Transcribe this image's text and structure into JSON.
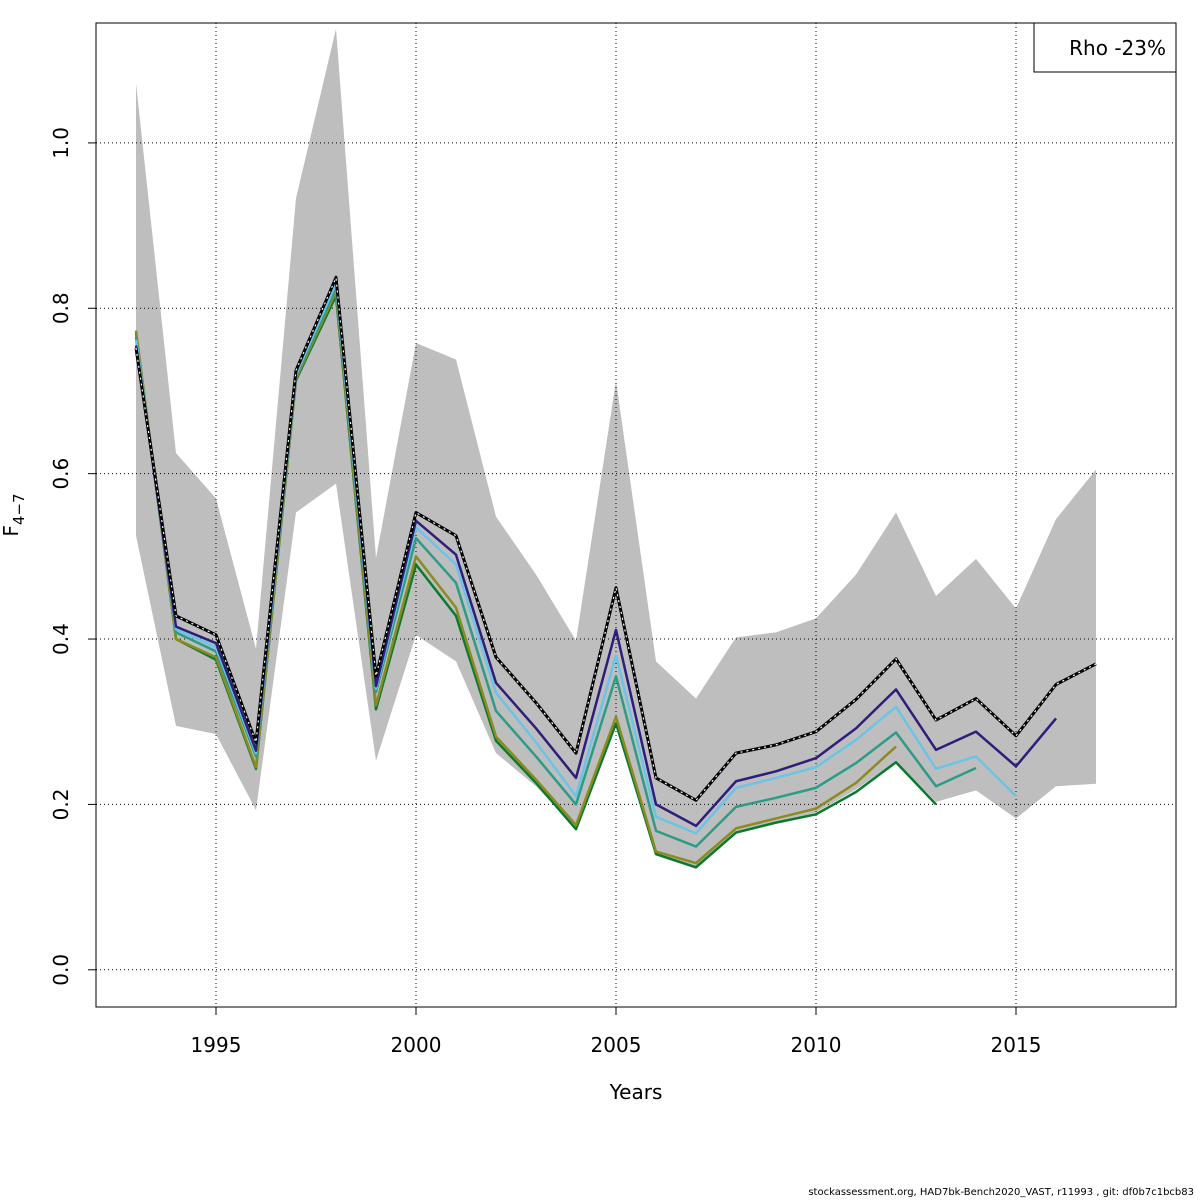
{
  "chart_data": {
    "type": "line",
    "xlabel": "Years",
    "ylabel": "F",
    "ylabel_subscript": "4−7",
    "xlim": [
      1992,
      2019
    ],
    "ylim": [
      -0.045,
      1.145
    ],
    "x_ticks": [
      1995,
      2000,
      2005,
      2010,
      2015
    ],
    "y_ticks": [
      0.0,
      0.2,
      0.4,
      0.6,
      0.8,
      1.0
    ],
    "y_tick_labels": [
      "0.0",
      "0.2",
      "0.4",
      "0.6",
      "0.8",
      "1.0"
    ],
    "grid": true,
    "legend": {
      "text": "Rho -23%",
      "placement": "top-right"
    },
    "band": {
      "color": "#bebebe",
      "x": [
        1993,
        1994,
        1995,
        1996,
        1997,
        1998,
        1999,
        2000,
        2001,
        2002,
        2003,
        2004,
        2005,
        2006,
        2007,
        2008,
        2009,
        2010,
        2011,
        2012,
        2013,
        2014,
        2015,
        2016,
        2017
      ],
      "lower": [
        0.525,
        0.295,
        0.285,
        0.193,
        0.553,
        0.588,
        0.253,
        0.405,
        0.373,
        0.262,
        0.222,
        0.172,
        0.302,
        0.138,
        0.122,
        0.165,
        0.178,
        0.19,
        0.218,
        0.252,
        0.203,
        0.217,
        0.183,
        0.222,
        0.225
      ],
      "upper": [
        1.072,
        0.625,
        0.57,
        0.388,
        0.933,
        1.138,
        0.498,
        0.758,
        0.738,
        0.548,
        0.478,
        0.398,
        0.712,
        0.373,
        0.328,
        0.402,
        0.408,
        0.425,
        0.478,
        0.553,
        0.452,
        0.497,
        0.437,
        0.545,
        0.605
      ]
    },
    "series": [
      {
        "color": "#000000",
        "dashed": true,
        "x": [
          1993,
          1994,
          1995,
          1996,
          1997,
          1998,
          1999,
          2000,
          2001,
          2002,
          2003,
          2004,
          2005,
          2006,
          2007,
          2008,
          2009,
          2010,
          2011,
          2012,
          2013,
          2014,
          2015,
          2016,
          2017
        ],
        "values": [
          0.752,
          0.428,
          0.405,
          0.275,
          0.725,
          0.837,
          0.355,
          0.553,
          0.525,
          0.378,
          0.323,
          0.262,
          0.462,
          0.232,
          0.205,
          0.262,
          0.272,
          0.288,
          0.327,
          0.376,
          0.302,
          0.328,
          0.283,
          0.345,
          0.37
        ]
      },
      {
        "color": "#2d1e7c",
        "x": [
          1993,
          1994,
          1995,
          1996,
          1997,
          1998,
          1999,
          2000,
          2001,
          2002,
          2003,
          2004,
          2005,
          2006,
          2007,
          2008,
          2009,
          2010,
          2011,
          2012,
          2013,
          2014,
          2015,
          2016
        ],
        "values": [
          0.755,
          0.415,
          0.395,
          0.265,
          0.723,
          0.838,
          0.343,
          0.543,
          0.502,
          0.347,
          0.292,
          0.232,
          0.411,
          0.2,
          0.174,
          0.228,
          0.24,
          0.256,
          0.292,
          0.339,
          0.266,
          0.288,
          0.246,
          0.304
        ]
      },
      {
        "color": "#6cc3e8",
        "x": [
          1993,
          1994,
          1995,
          1996,
          1997,
          1998,
          1999,
          2000,
          2001,
          2002,
          2003,
          2004,
          2005,
          2006,
          2007,
          2008,
          2009,
          2010,
          2011,
          2012,
          2013,
          2014,
          2015
        ],
        "values": [
          0.762,
          0.412,
          0.39,
          0.262,
          0.72,
          0.83,
          0.34,
          0.535,
          0.49,
          0.335,
          0.275,
          0.21,
          0.38,
          0.185,
          0.165,
          0.22,
          0.232,
          0.245,
          0.278,
          0.318,
          0.243,
          0.258,
          0.21
        ]
      },
      {
        "color": "#2c9c87",
        "x": [
          1993,
          1994,
          1995,
          1996,
          1997,
          1998,
          1999,
          2000,
          2001,
          2002,
          2003,
          2004,
          2005,
          2006,
          2007,
          2008,
          2009,
          2010,
          2011,
          2012,
          2013,
          2014
        ],
        "values": [
          0.765,
          0.408,
          0.385,
          0.258,
          0.718,
          0.825,
          0.336,
          0.522,
          0.468,
          0.313,
          0.258,
          0.2,
          0.355,
          0.168,
          0.149,
          0.197,
          0.208,
          0.22,
          0.25,
          0.287,
          0.222,
          0.244
        ]
      },
      {
        "color": "#8b8b22",
        "x": [
          1993,
          1994,
          1995,
          1996,
          1997,
          1998,
          1999,
          2000,
          2001,
          2002,
          2003,
          2004,
          2005,
          2006,
          2007,
          2008,
          2009,
          2010,
          2011,
          2012
        ],
        "values": [
          0.773,
          0.4,
          0.378,
          0.245,
          0.715,
          0.82,
          0.32,
          0.5,
          0.438,
          0.282,
          0.23,
          0.175,
          0.306,
          0.143,
          0.129,
          0.171,
          0.183,
          0.195,
          0.226,
          0.27
        ]
      },
      {
        "color": "#0a7a2e",
        "x": [
          1993,
          1994,
          1995,
          1996,
          1997,
          1998,
          1999,
          2000,
          2001,
          2002,
          2003,
          2004,
          2005,
          2006,
          2007,
          2008,
          2009,
          2010,
          2011,
          2012,
          2013
        ],
        "values": [
          0.77,
          0.4,
          0.375,
          0.243,
          0.713,
          0.815,
          0.315,
          0.49,
          0.428,
          0.277,
          0.226,
          0.17,
          0.298,
          0.14,
          0.124,
          0.166,
          0.178,
          0.188,
          0.215,
          0.251,
          0.2
        ]
      }
    ],
    "footer": "stockassessment.org, HAD7bk-Bench2020_VAST, r11993 , git: df0b7c1bcb83"
  }
}
